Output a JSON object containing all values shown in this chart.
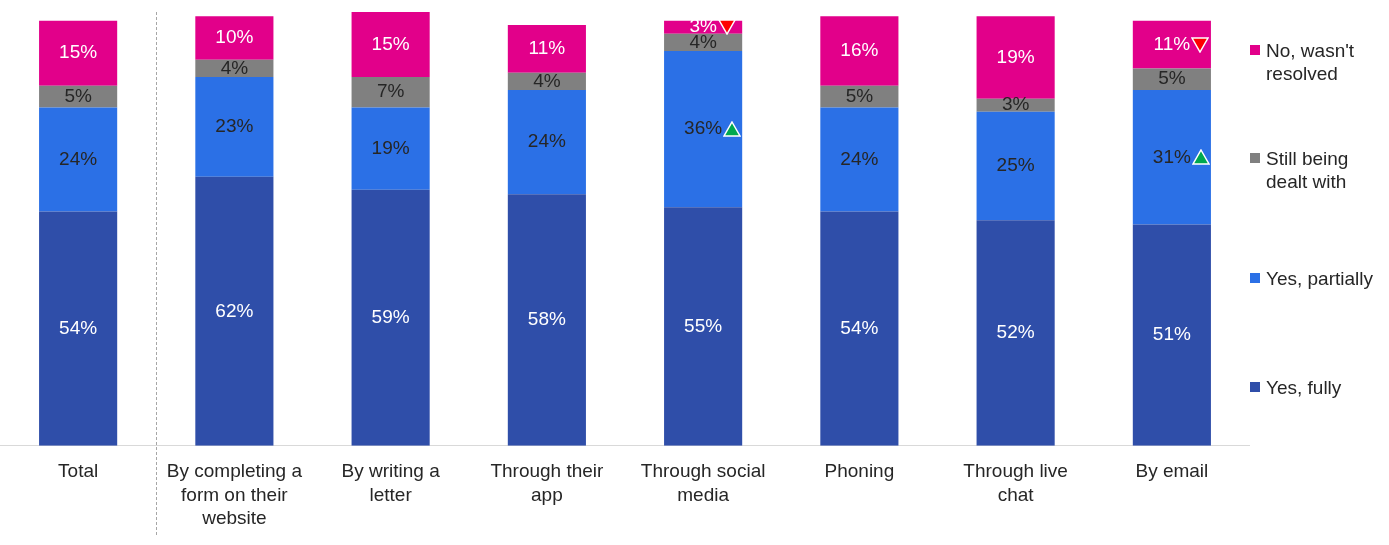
{
  "chart_data": {
    "type": "bar",
    "stacked": true,
    "legend": "right",
    "marker": "square",
    "grid": false,
    "tick_labels": "x",
    "categories": [
      "Total",
      "By completing a form on their website",
      "By writing a letter",
      "Through their app",
      "Through social media",
      "Phoning",
      "Through live chat",
      "By email"
    ],
    "series": [
      {
        "name": "Yes, fully",
        "color": "#2f4ea9",
        "values": [
          54,
          62,
          59,
          58,
          55,
          54,
          52,
          51
        ],
        "value_labels": [
          "54%",
          "62%",
          "59%",
          "58%",
          "55%",
          "54%",
          "52%",
          "51%"
        ]
      },
      {
        "name": "Yes, partially",
        "color": "#2b70e6",
        "values": [
          24,
          23,
          19,
          24,
          36,
          24,
          25,
          31
        ],
        "value_labels": [
          "24%",
          "23%",
          "19%",
          "24%",
          "36%",
          "24%",
          "25%",
          "31%"
        ]
      },
      {
        "name": "Still being dealt with",
        "color": "#808080",
        "values": [
          5,
          4,
          7,
          4,
          4,
          5,
          3,
          5
        ],
        "value_labels": [
          "5%",
          "4%",
          "7%",
          "4%",
          "4%",
          "5%",
          "3%",
          "5%"
        ]
      },
      {
        "name": "No, wasn't resolved",
        "color": "#e2008a",
        "values": [
          15,
          10,
          15,
          11,
          3,
          16,
          19,
          11
        ],
        "value_labels": [
          "15%",
          "10%",
          "15%",
          "11%",
          "3%",
          "16%",
          "19%",
          "11%"
        ]
      }
    ]
  }
}
